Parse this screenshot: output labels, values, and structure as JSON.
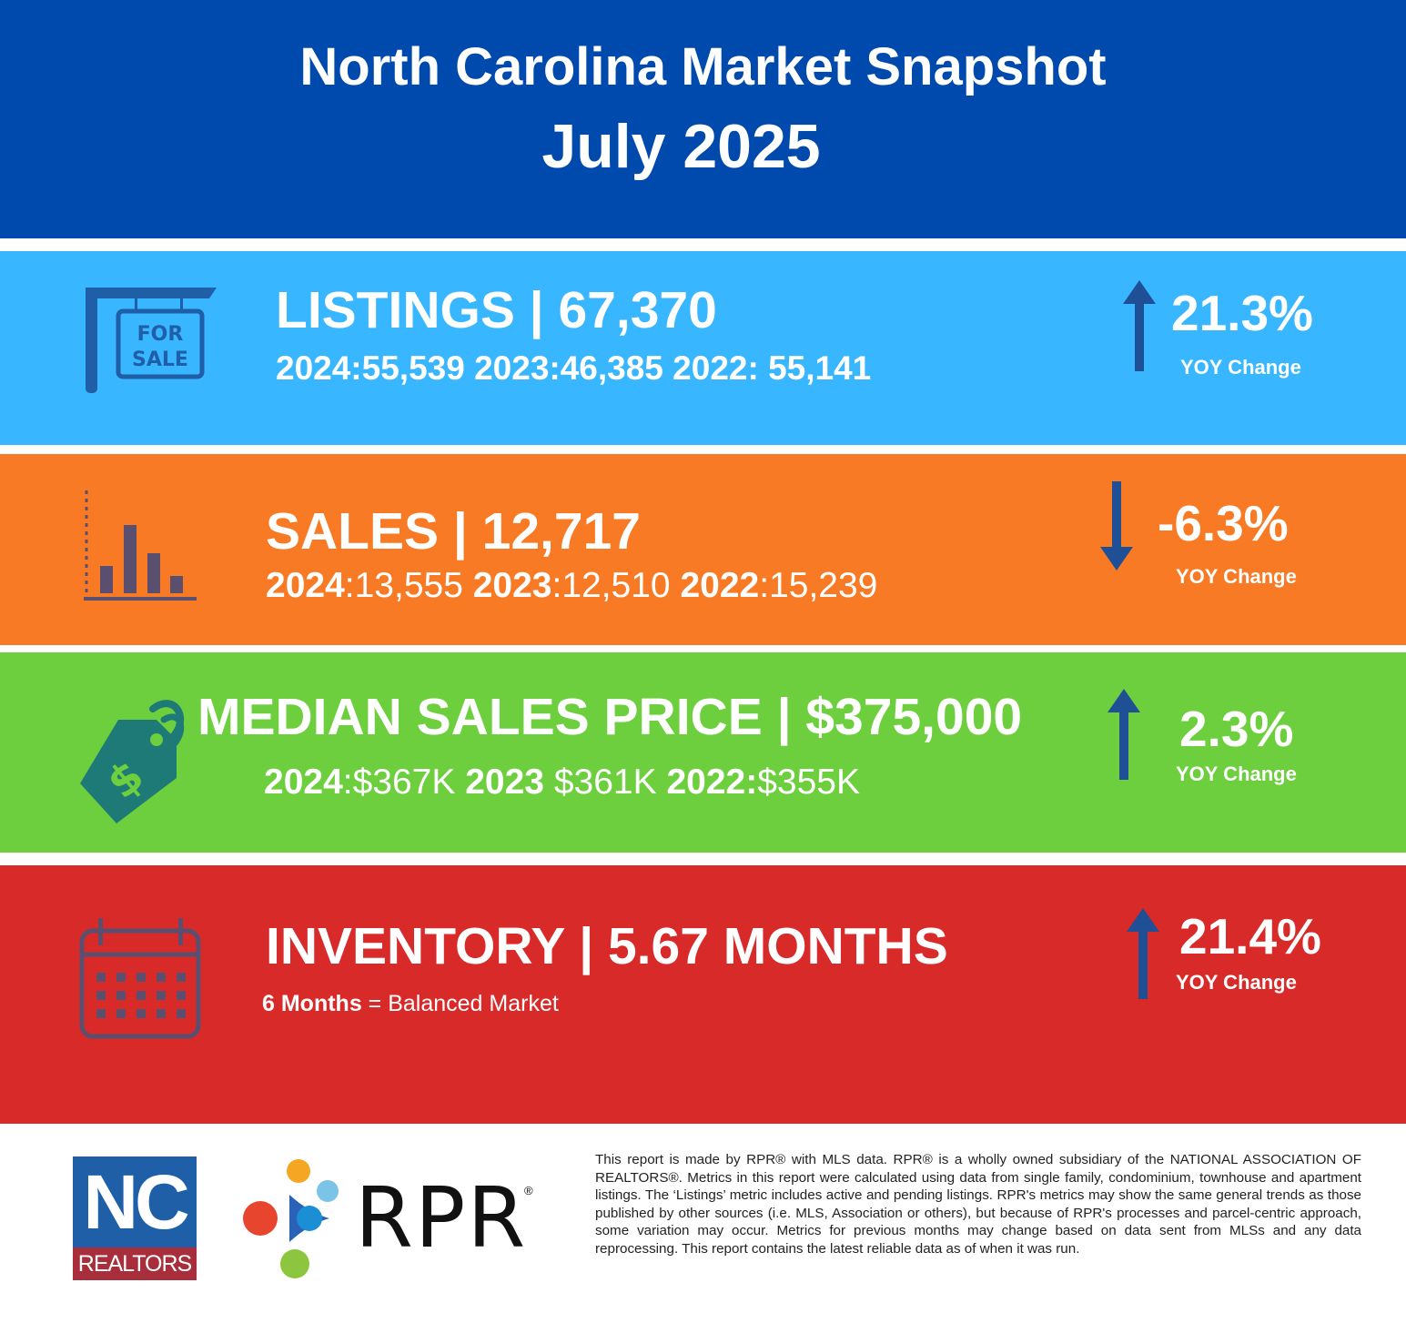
{
  "header": {
    "title": "North Carolina Market Snapshot",
    "date": "July 2025"
  },
  "listings": {
    "icon": "for-sale-sign-icon",
    "icon_text_1": "FOR",
    "icon_text_2": "SALE",
    "label": "LISTINGS | 67,370",
    "history": "2024:55,539 2023:46,385 2022: 55,141",
    "change": "21.3%",
    "direction": "up",
    "yoy_label": "YOY Change",
    "color": "#38b6ff"
  },
  "sales": {
    "icon": "bar-chart-icon",
    "label": "SALES | 12,717",
    "history": [
      {
        "year": "2024",
        "value": ":13,555 "
      },
      {
        "year": "2023",
        "value": ":12,510 "
      },
      {
        "year": "2022",
        "value": ":15,239"
      }
    ],
    "change": "-6.3%",
    "direction": "down",
    "yoy_label": "YOY Change",
    "color": "#f97a24"
  },
  "price": {
    "icon": "price-tag-icon",
    "label": "MEDIAN SALES PRICE | $375,000",
    "history": [
      {
        "year": "2024",
        "value": ":$367K "
      },
      {
        "year": "2023",
        "value": " $361K  "
      },
      {
        "year": "2022:",
        "value": "$355K"
      }
    ],
    "change": "2.3%",
    "direction": "up",
    "yoy_label": "YOY Change",
    "color": "#6dcf3e"
  },
  "inventory": {
    "icon": "calendar-icon",
    "label": "INVENTORY | 5.67 MONTHS",
    "note_bold": "6 Months",
    "note_rest": " = Balanced Market",
    "change": "21.4%",
    "direction": "up",
    "yoy_label": "YOY Change",
    "color": "#d92a2a"
  },
  "footer": {
    "nc_logo_top": "NC",
    "nc_logo_bottom": "REALTORS",
    "rpr_logo_text": "RPR",
    "rpr_reg": "®",
    "disclaimer": "This report is made by RPR® with MLS data. RPR® is a wholly owned subsidiary of the NATIONAL ASSOCIATION OF REALTORS®. Metrics in this report were calculated using data from single family, condominium, townhouse and apartment listings. The ‘Listings’ metric includes active and pending listings. RPR's metrics may show the same general trends as those published by other sources (i.e. MLS, Association or others), but because of RPR's processes and parcel-centric approach, some variation may occur. Metrics for previous months may change based on data sent from MLSs and any data reprocessing. This report contains the latest reliable data as of when it was run."
  }
}
